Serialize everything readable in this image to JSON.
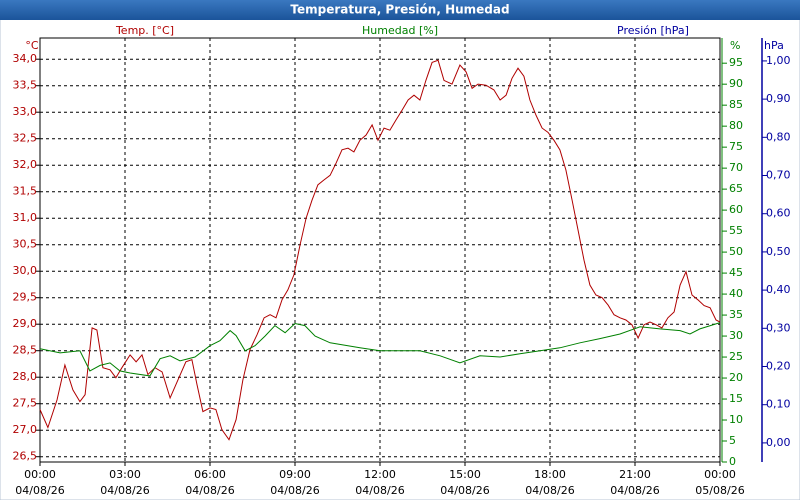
{
  "chart_data": {
    "type": "line",
    "title": "Temperatura, Presión, Humedad",
    "ylabel": "Temp. [°C]",
    "yunit": "°C",
    "y2label": "Humedad [%]",
    "y2unit": "%",
    "y3label": "Presión [hPa]",
    "y3unit": "hPa",
    "grid": true,
    "xlim": [
      0,
      24
    ],
    "xticks": [
      {
        "value": 0,
        "label": [
          "00:00",
          "04/08/26"
        ]
      },
      {
        "value": 3,
        "label": [
          "03:00",
          "04/08/26"
        ]
      },
      {
        "value": 6,
        "label": [
          "06:00",
          "04/08/26"
        ]
      },
      {
        "value": 9,
        "label": [
          "09:00",
          "04/08/26"
        ]
      },
      {
        "value": 12,
        "label": [
          "12:00",
          "04/08/26"
        ]
      },
      {
        "value": 15,
        "label": [
          "15:00",
          "04/08/26"
        ]
      },
      {
        "value": 18,
        "label": [
          "18:00",
          "04/08/26"
        ]
      },
      {
        "value": 21,
        "label": [
          "21:00",
          "04/08/26"
        ]
      },
      {
        "value": 24,
        "label": [
          "00:00",
          "05/08/26"
        ]
      }
    ],
    "ylim": [
      26.4,
      34.4
    ],
    "yticks": [
      {
        "value": 26.5,
        "label": "26,5"
      },
      {
        "value": 27,
        "label": "27,0"
      },
      {
        "value": 27.5,
        "label": "27,5"
      },
      {
        "value": 28,
        "label": "28,0"
      },
      {
        "value": 28.5,
        "label": "28,5"
      },
      {
        "value": 29,
        "label": "29,0"
      },
      {
        "value": 29.5,
        "label": "29,5"
      },
      {
        "value": 30,
        "label": "30,0"
      },
      {
        "value": 30.5,
        "label": "30,5"
      },
      {
        "value": 31,
        "label": "31,0"
      },
      {
        "value": 31.5,
        "label": "31,5"
      },
      {
        "value": 32,
        "label": "32,0"
      },
      {
        "value": 32.5,
        "label": "32,5"
      },
      {
        "value": 33,
        "label": "33,0"
      },
      {
        "value": 33.5,
        "label": "33,5"
      },
      {
        "value": 34,
        "label": "34,0"
      }
    ],
    "y2lim": [
      0,
      101
    ],
    "y2ticks": [
      0,
      5,
      10,
      15,
      20,
      25,
      30,
      35,
      40,
      45,
      50,
      55,
      60,
      65,
      70,
      75,
      80,
      85,
      90,
      95
    ],
    "y3lim": [
      -0.05,
      1.06
    ],
    "y3ticks": [
      {
        "value": 0,
        "label": "0,00"
      },
      {
        "value": 0.1,
        "label": "0,10"
      },
      {
        "value": 0.2,
        "label": "0,20"
      },
      {
        "value": 0.3,
        "label": "0,30"
      },
      {
        "value": 0.4,
        "label": "0,40"
      },
      {
        "value": 0.5,
        "label": "0,50"
      },
      {
        "value": 0.6,
        "label": "0,60"
      },
      {
        "value": 0.7,
        "label": "0,70"
      },
      {
        "value": 0.8,
        "label": "0,80"
      },
      {
        "value": 0.9,
        "label": "0,90"
      },
      {
        "value": 1,
        "label": "1,00"
      }
    ],
    "y3color": "#0000a0",
    "series": [
      {
        "name": "Temp.",
        "color": "#b00000",
        "axis": "y",
        "x": [
          0,
          0.28,
          0.6,
          0.88,
          1.16,
          1.41,
          1.59,
          1.84,
          2.01,
          2.22,
          2.47,
          2.68,
          2.89,
          3.18,
          3.39,
          3.6,
          3.81,
          4.06,
          4.31,
          4.59,
          4.87,
          5.15,
          5.36,
          5.54,
          5.75,
          6,
          6.21,
          6.42,
          6.67,
          6.92,
          7.16,
          7.41,
          7.66,
          7.91,
          8.12,
          8.33,
          8.54,
          8.75,
          8.96,
          9.18,
          9.39,
          9.6,
          9.81,
          10.02,
          10.24,
          10.45,
          10.66,
          10.87,
          11.08,
          11.29,
          11.51,
          11.72,
          11.93,
          12.14,
          12.35,
          12.56,
          12.78,
          12.99,
          13.2,
          13.41,
          13.62,
          13.84,
          14.05,
          14.26,
          14.54,
          14.82,
          15.04,
          15.25,
          15.46,
          15.74,
          16.02,
          16.24,
          16.45,
          16.66,
          16.87,
          17.08,
          17.29,
          17.51,
          17.72,
          17.93,
          18.14,
          18.35,
          18.56,
          18.78,
          18.99,
          19.2,
          19.41,
          19.62,
          19.84,
          20.05,
          20.26,
          20.47,
          20.68,
          20.89,
          21.11,
          21.32,
          21.53,
          21.74,
          21.95,
          22.16,
          22.38,
          22.59,
          22.8,
          23.01,
          23.22,
          23.44,
          23.65,
          23.86,
          24
        ],
        "values": [
          27.39,
          27.05,
          27.57,
          28.23,
          27.76,
          27.54,
          27.67,
          28.93,
          28.89,
          28.18,
          28.14,
          27.99,
          28.18,
          28.42,
          28.29,
          28.42,
          28.05,
          28.18,
          28.1,
          27.61,
          27.95,
          28.29,
          28.33,
          27.86,
          27.35,
          27.42,
          27.39,
          27.01,
          26.82,
          27.2,
          27.95,
          28.52,
          28.8,
          29.12,
          29.18,
          29.12,
          29.46,
          29.65,
          29.93,
          30.5,
          31,
          31.34,
          31.63,
          31.72,
          31.81,
          32.04,
          32.29,
          32.32,
          32.25,
          32.47,
          32.57,
          32.76,
          32.47,
          32.7,
          32.66,
          32.85,
          33.04,
          33.23,
          33.32,
          33.23,
          33.6,
          33.94,
          33.98,
          33.6,
          33.53,
          33.89,
          33.76,
          33.45,
          33.53,
          33.51,
          33.42,
          33.23,
          33.32,
          33.64,
          33.83,
          33.68,
          33.23,
          32.94,
          32.7,
          32.62,
          32.47,
          32.29,
          31.91,
          31.34,
          30.78,
          30.21,
          29.74,
          29.55,
          29.5,
          29.36,
          29.18,
          29.12,
          29.08,
          28.99,
          28.74,
          28.99,
          29.04,
          28.99,
          28.93,
          29.12,
          29.23,
          29.74,
          29.99,
          29.55,
          29.46,
          29.35,
          29.31,
          29.08,
          29.04
        ]
      },
      {
        "name": "Humedad",
        "color": "#008000",
        "axis": "y2",
        "x": [
          0,
          0.71,
          1.41,
          1.76,
          2.12,
          2.47,
          2.82,
          3.18,
          3.88,
          4.24,
          4.59,
          4.94,
          5.47,
          6,
          6.35,
          6.71,
          6.92,
          7.24,
          7.59,
          7.94,
          8.29,
          8.65,
          9,
          9.35,
          9.71,
          10.24,
          11.29,
          12,
          13.41,
          14.12,
          14.82,
          15.53,
          16.24,
          16.94,
          17.65,
          18.35,
          19.06,
          19.76,
          20.47,
          21.18,
          21.88,
          22.59,
          22.94,
          23.29,
          24
        ],
        "values": [
          27,
          26,
          26.5,
          21.7,
          23,
          23.6,
          21.7,
          21.2,
          20.5,
          24.6,
          25.3,
          24.1,
          25,
          27.7,
          28.9,
          31.3,
          30.1,
          26.5,
          27.7,
          30,
          32.5,
          30.8,
          33,
          32.5,
          30,
          28.4,
          27.2,
          26.5,
          26.5,
          25.3,
          23.6,
          25.3,
          25,
          25.8,
          26.5,
          27.2,
          28.4,
          29.4,
          30.5,
          32.2,
          31.7,
          31.3,
          30.5,
          31.7,
          33.2
        ]
      }
    ]
  }
}
